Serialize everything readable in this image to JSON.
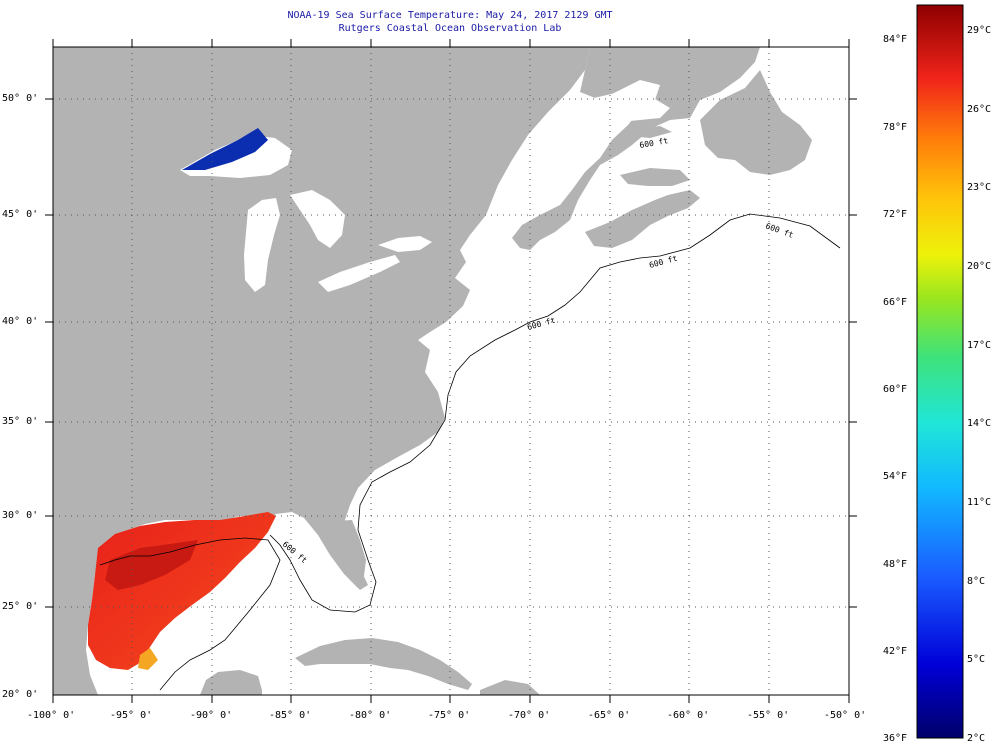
{
  "title": {
    "line1": "NOAA-19 Sea Surface Temperature:  May 24, 2017 2129 GMT",
    "line2": "Rutgers Coastal Ocean Observation Lab"
  },
  "lat_labels": [
    "50° 0'",
    "45° 0'",
    "40° 0'",
    "35° 0'",
    "30° 0'",
    "25° 0'",
    "20° 0'"
  ],
  "lon_labels": [
    "-100° 0'",
    "-95° 0'",
    "-90° 0'",
    "-85° 0'",
    "-80° 0'",
    "-75° 0'",
    "-70° 0'",
    "-65° 0'",
    "-60° 0'",
    "-55° 0'",
    "-50° 0'"
  ],
  "isobath_label": "600 ft",
  "colorbar": {
    "f_labels": [
      "84°F",
      "78°F",
      "72°F",
      "66°F",
      "60°F",
      "54°F",
      "48°F",
      "42°F",
      "36°F"
    ],
    "c_labels": [
      "29°C",
      "26°C",
      "23°C",
      "20°C",
      "17°C",
      "14°C",
      "11°C",
      "8°C",
      "5°C",
      "2°C"
    ]
  },
  "colors": {
    "land": "#b3b3b3",
    "ocean": "#ffffff",
    "title": "#1a1aa6",
    "warm": "#e8201a",
    "cold": "#0b2db0"
  }
}
